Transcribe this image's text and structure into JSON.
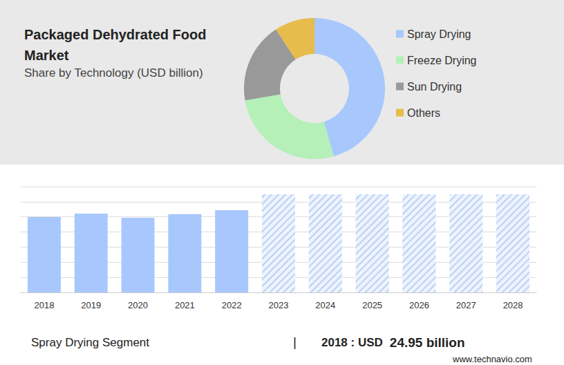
{
  "chart_data": [
    {
      "type": "pie",
      "title": "Packaged Dehydrated Food Market",
      "subtitle": "Share by Technology (USD billion)",
      "categories": [
        "Spray Drying",
        "Freeze Drying",
        "Sun Drying",
        "Others"
      ],
      "values": [
        45.6,
        26.7,
        18.5,
        9.2
      ],
      "colors": [
        "#a8c8fd",
        "#b4f0b8",
        "#999999",
        "#e6bc4c"
      ],
      "legend": "right"
    },
    {
      "type": "bar",
      "categories": [
        "2018",
        "2019",
        "2020",
        "2021",
        "2022",
        "2023",
        "2024",
        "2025",
        "2026",
        "2027",
        "2028"
      ],
      "series": [
        {
          "color": "#a8c8fd",
          "values": [
            24.95,
            26.1,
            24.7,
            25.9,
            27.2,
            null,
            null,
            null,
            null,
            null,
            null
          ]
        },
        {
          "color": "#b9d1f7",
          "marker": "hatch",
          "values": [
            null,
            null,
            null,
            null,
            null,
            32.5,
            32.5,
            32.5,
            32.5,
            32.5,
            32.5
          ]
        }
      ],
      "ylim": [
        0,
        35
      ],
      "yticks": [
        0,
        5,
        10,
        15,
        20,
        25,
        30,
        35
      ],
      "grid": true,
      "tick_labels": "x"
    }
  ],
  "footer": {
    "label": "Spray Drying Segment",
    "separator": "|",
    "year_text": "2018 : USD",
    "amount_text": "24.95 billion"
  },
  "source": "www.technavio.com"
}
